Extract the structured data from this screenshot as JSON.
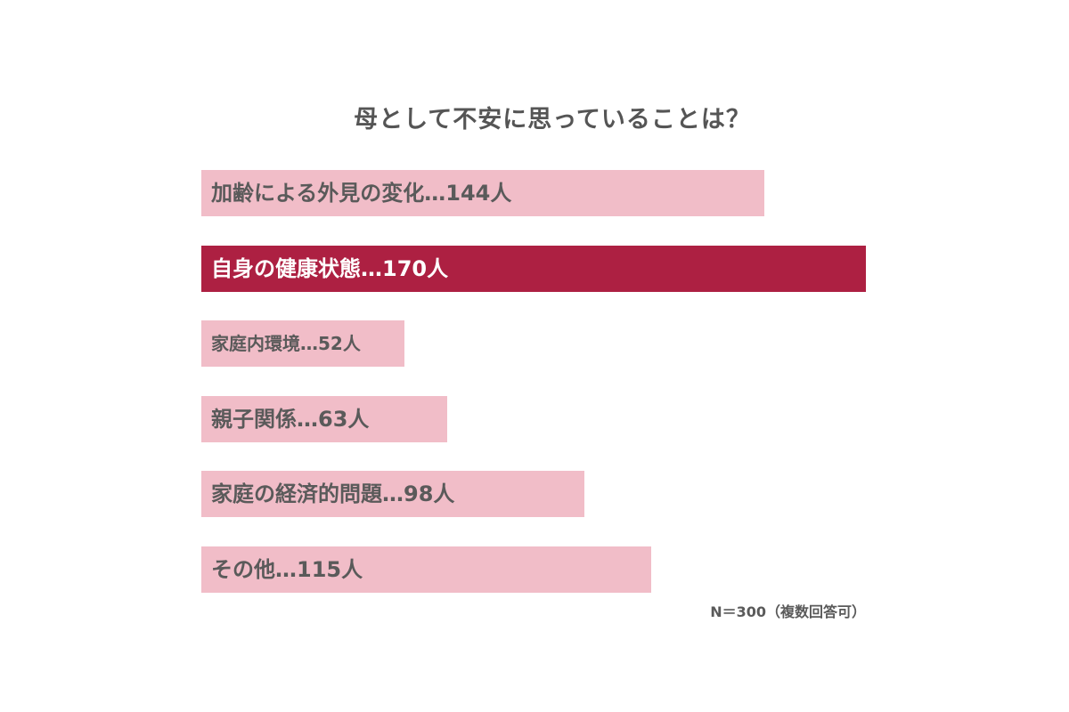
{
  "chart_data": {
    "type": "bar",
    "orientation": "horizontal",
    "title": "母として不安に思っていることは？",
    "categories": [
      "加齢による外見の変化",
      "自身の健康状態",
      "家庭内環境",
      "親子関係",
      "家庭の経済的問題",
      "その他"
    ],
    "values": [
      144,
      170,
      52,
      63,
      98,
      115
    ],
    "labels": [
      "加齢による外見の変化…144人",
      "自身の健康状態…170人",
      "家庭内環境…52人",
      "親子関係…63人",
      "家庭の経済的問題…98人",
      "その他…115人"
    ],
    "highlight_index": 1,
    "note": "N＝300（複数回答可）",
    "xlim": [
      0,
      170
    ],
    "grid": false,
    "legend": "none",
    "colors": {
      "bar": "#f1bdc8",
      "highlight": "#ad2042",
      "text": "#5a5a5a",
      "title": "#555555",
      "highlight_text": "#ffffff"
    }
  }
}
